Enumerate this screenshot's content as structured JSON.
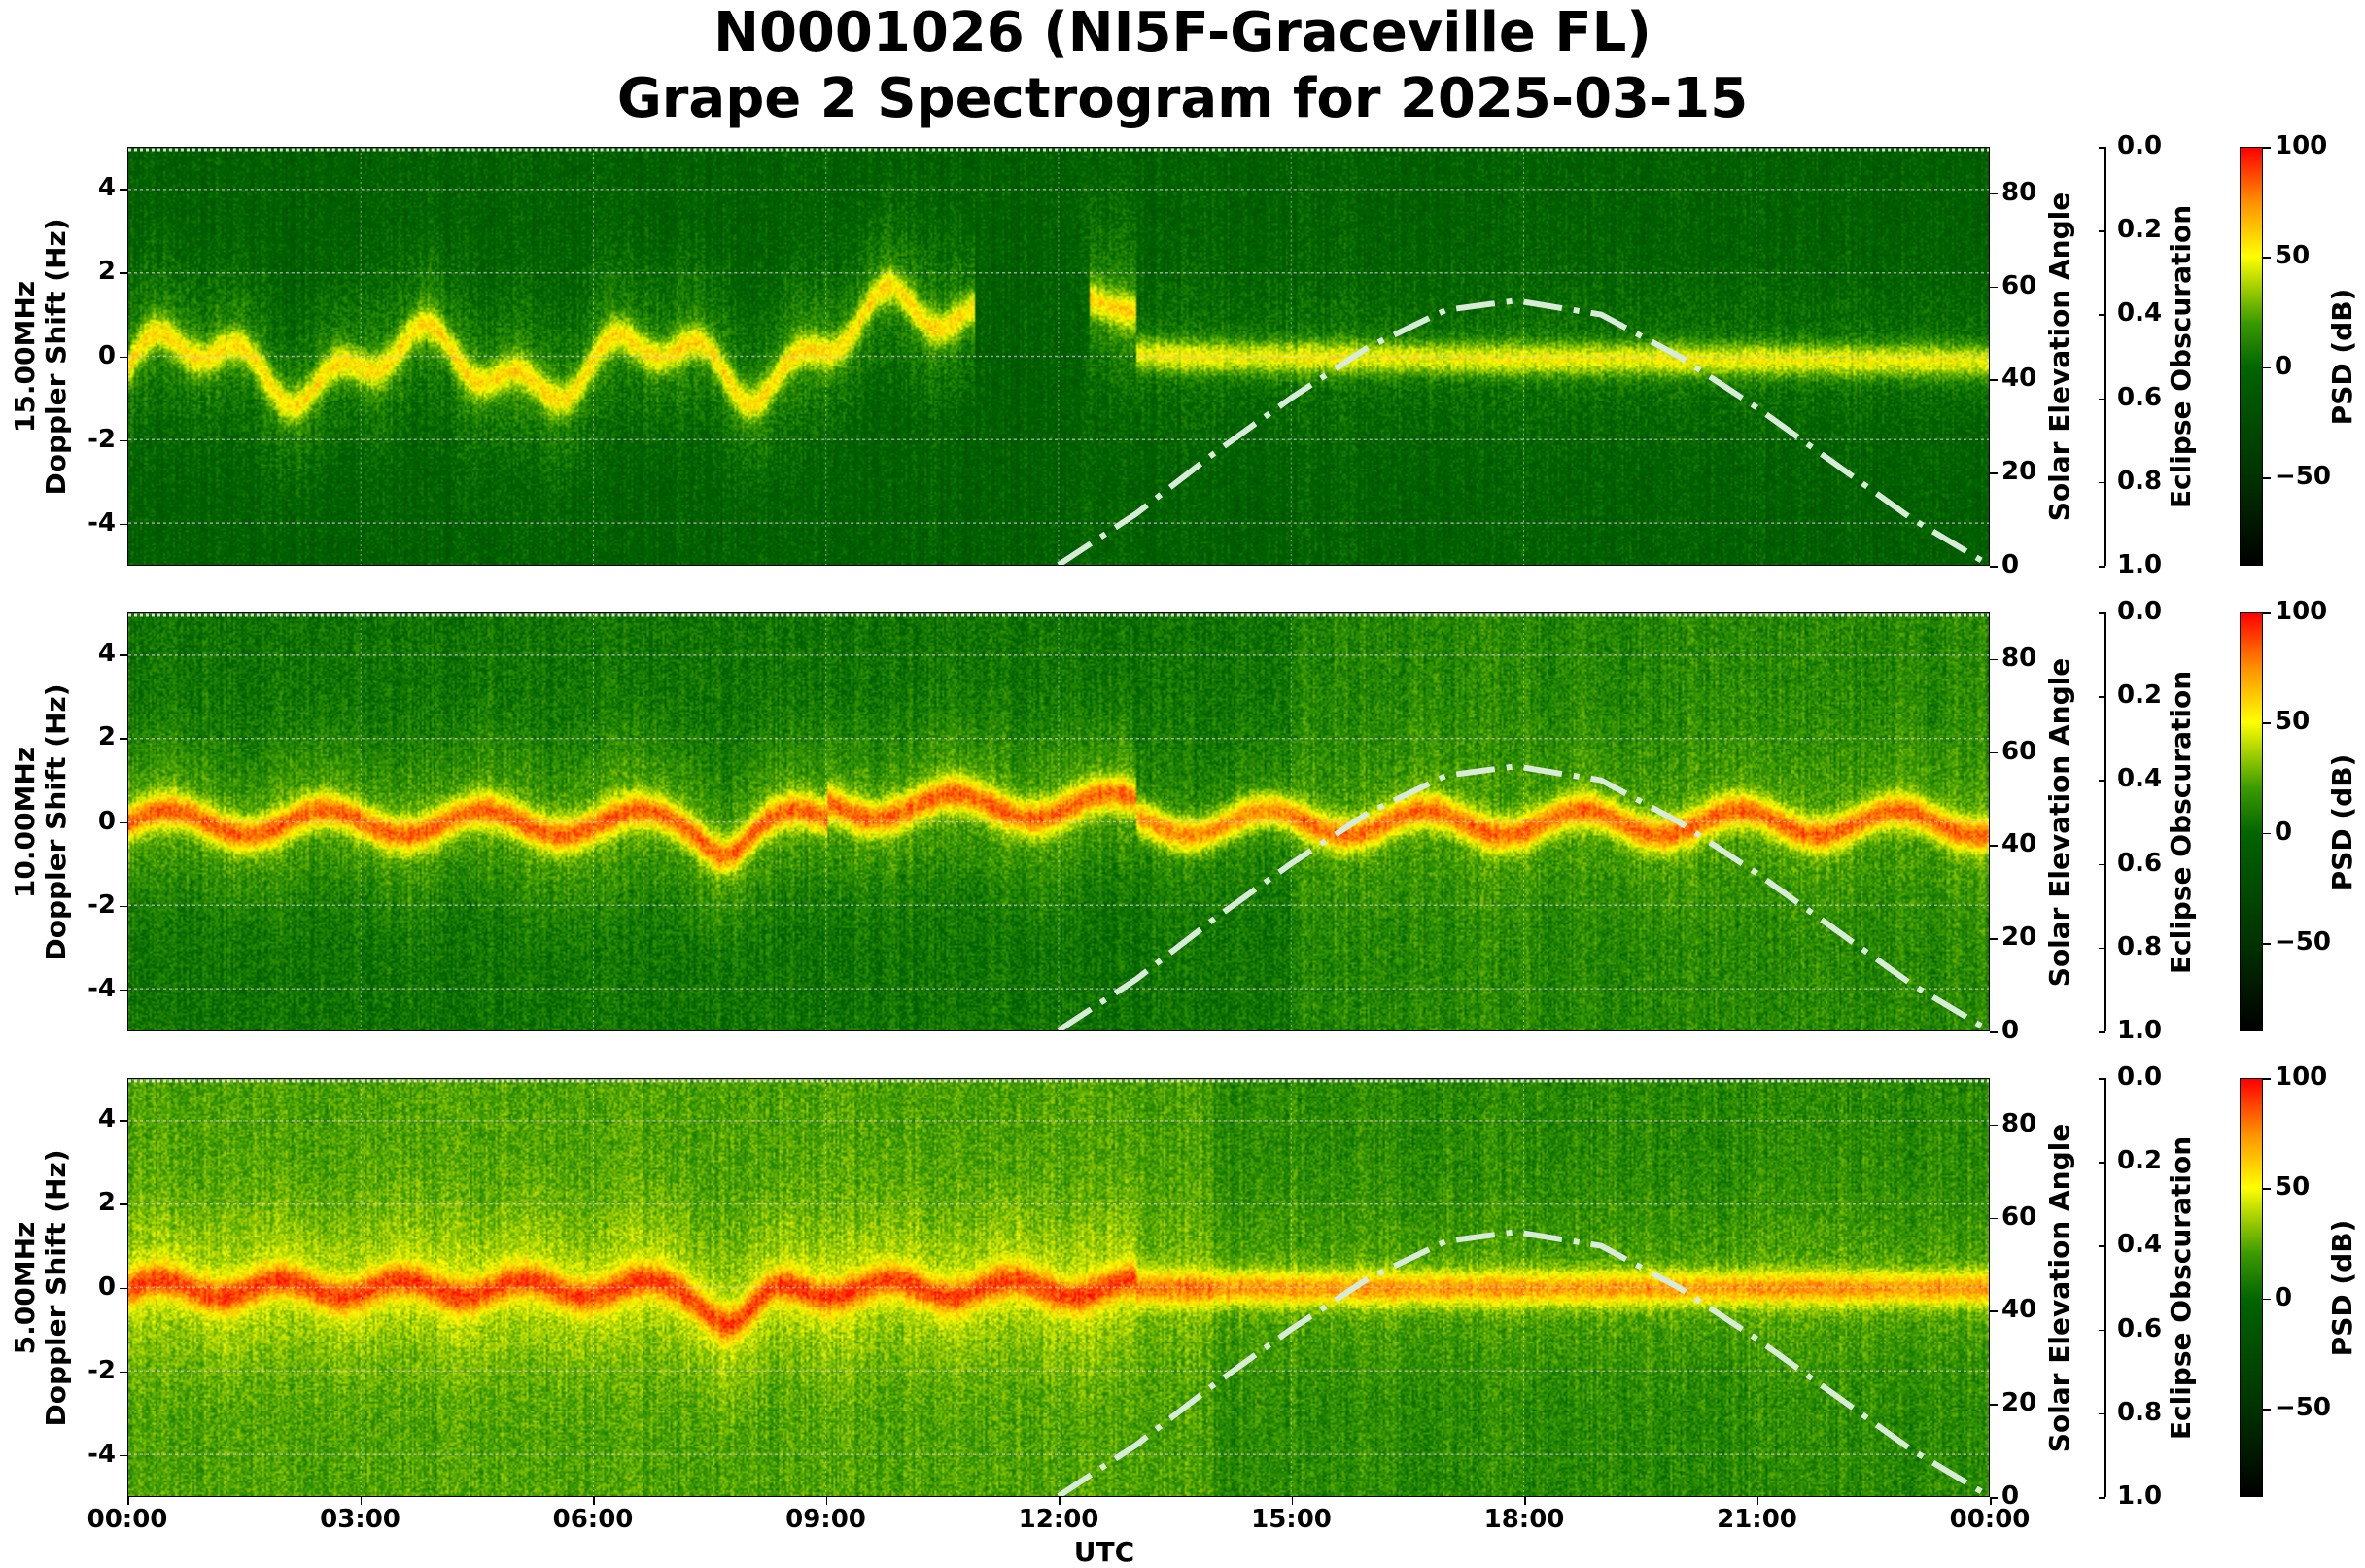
{
  "title": {
    "line1": "N0001026 (NI5F-Graceville FL)",
    "line2": "Grape 2 Spectrogram for 2025-03-15"
  },
  "chart_data": {
    "type": "heatmap",
    "title": "N0001026 (NI5F-Graceville FL) Grape 2 Spectrogram for 2025-03-15",
    "xlabel": "UTC",
    "x_ticks": [
      "00:00",
      "03:00",
      "06:00",
      "09:00",
      "12:00",
      "15:00",
      "18:00",
      "21:00",
      "00:00"
    ],
    "xlim_hours": [
      0,
      24
    ],
    "panels": [
      {
        "frequency": "15.00MHz",
        "ylabel": "Doppler Shift (Hz)",
        "base_psd_db": -5,
        "trace_strength": 45
      },
      {
        "frequency": "10.00MHz",
        "ylabel": "Doppler Shift (Hz)",
        "base_psd_db": 5,
        "trace_strength": 60
      },
      {
        "frequency": "5.00MHz",
        "ylabel": "Doppler Shift (Hz)",
        "base_psd_db": 22,
        "trace_strength": 50
      }
    ],
    "ylim": [
      -5,
      5
    ],
    "y_ticks": [
      "-4",
      "-2",
      "0",
      "2",
      "4"
    ],
    "right_axis": {
      "label": "Solar Elevation Angle",
      "ylim": [
        0,
        90
      ],
      "ticks": [
        "0",
        "20",
        "40",
        "60",
        "80"
      ]
    },
    "eclipse_axis": {
      "label": "Eclipse Obscuration",
      "ylim": [
        1.0,
        0.0
      ],
      "ticks": [
        "0.0",
        "0.2",
        "0.4",
        "0.6",
        "0.8",
        "1.0"
      ]
    },
    "colorbar": {
      "label": "PSD (dB)",
      "range": [
        -90,
        100
      ],
      "ticks": [
        "100",
        "50",
        "0",
        "−50"
      ],
      "tick_values": [
        100,
        50,
        0,
        -50
      ]
    },
    "solar_elevation": {
      "hours": [
        12,
        13,
        14,
        15,
        16,
        17,
        17.9,
        19,
        20,
        21,
        22,
        23,
        24
      ],
      "degrees": [
        0,
        11,
        24,
        36,
        47,
        55,
        57,
        54,
        45,
        34,
        22,
        10,
        0
      ]
    }
  }
}
